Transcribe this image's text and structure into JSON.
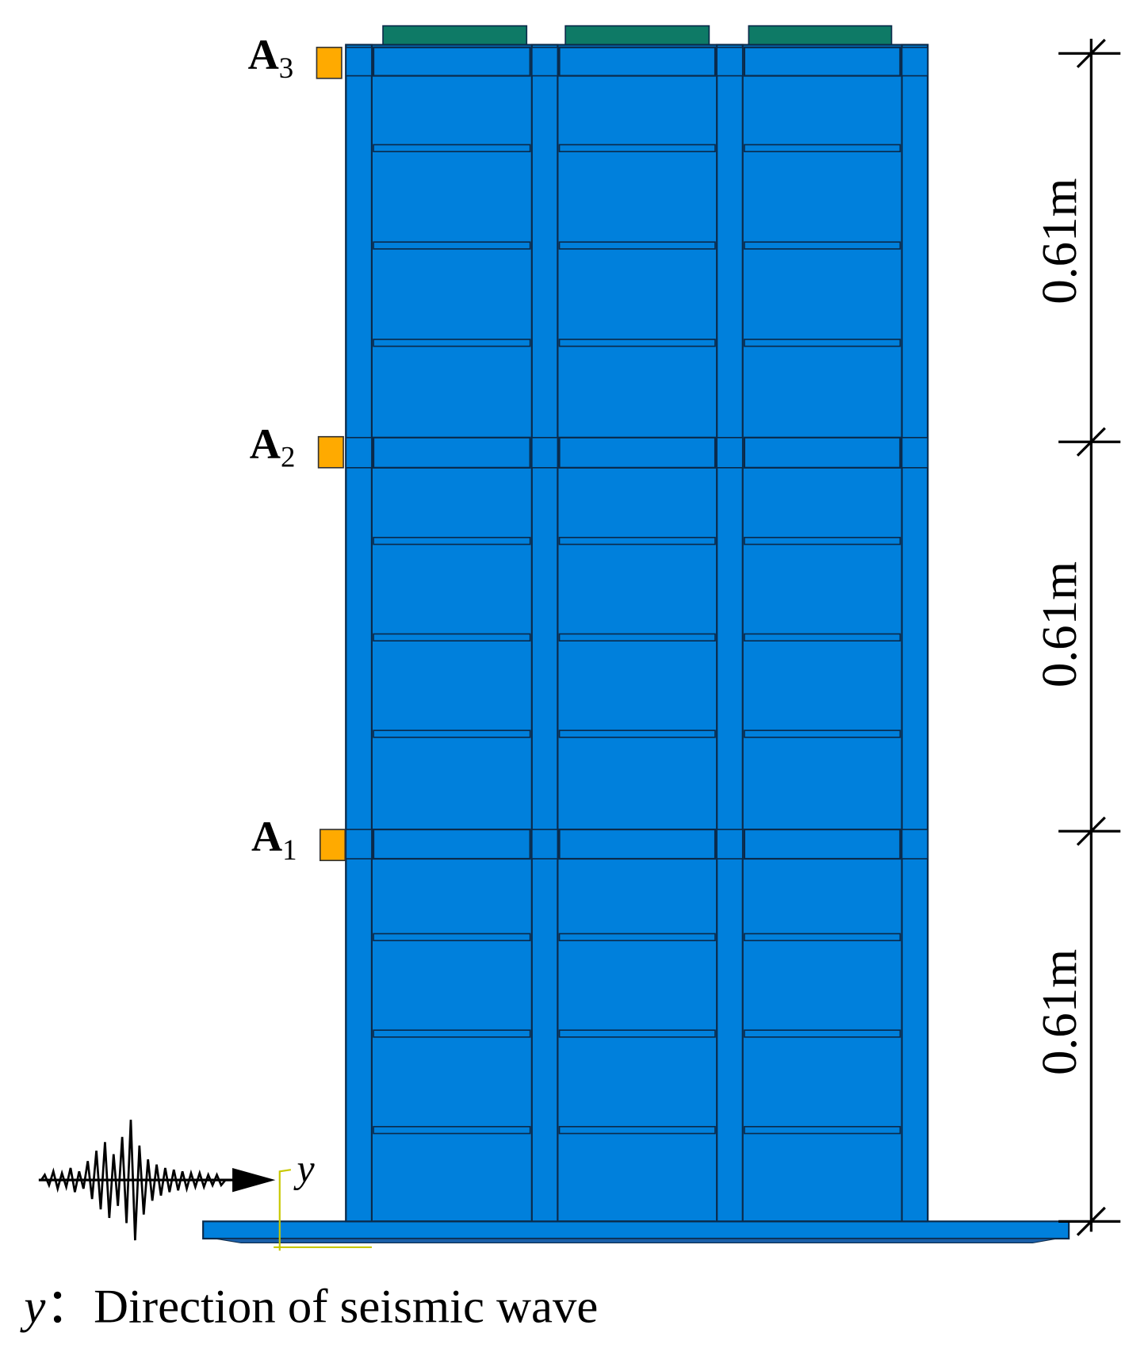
{
  "sensors": [
    {
      "letter": "A",
      "sub": "3"
    },
    {
      "letter": "A",
      "sub": "2"
    },
    {
      "letter": "A",
      "sub": "1"
    }
  ],
  "dimensions": [
    "0.61m",
    "0.61m",
    "0.61m"
  ],
  "axis_label": "y",
  "caption": {
    "symbol": "y",
    "separator": "：",
    "text": "Direction of seismic wave"
  }
}
